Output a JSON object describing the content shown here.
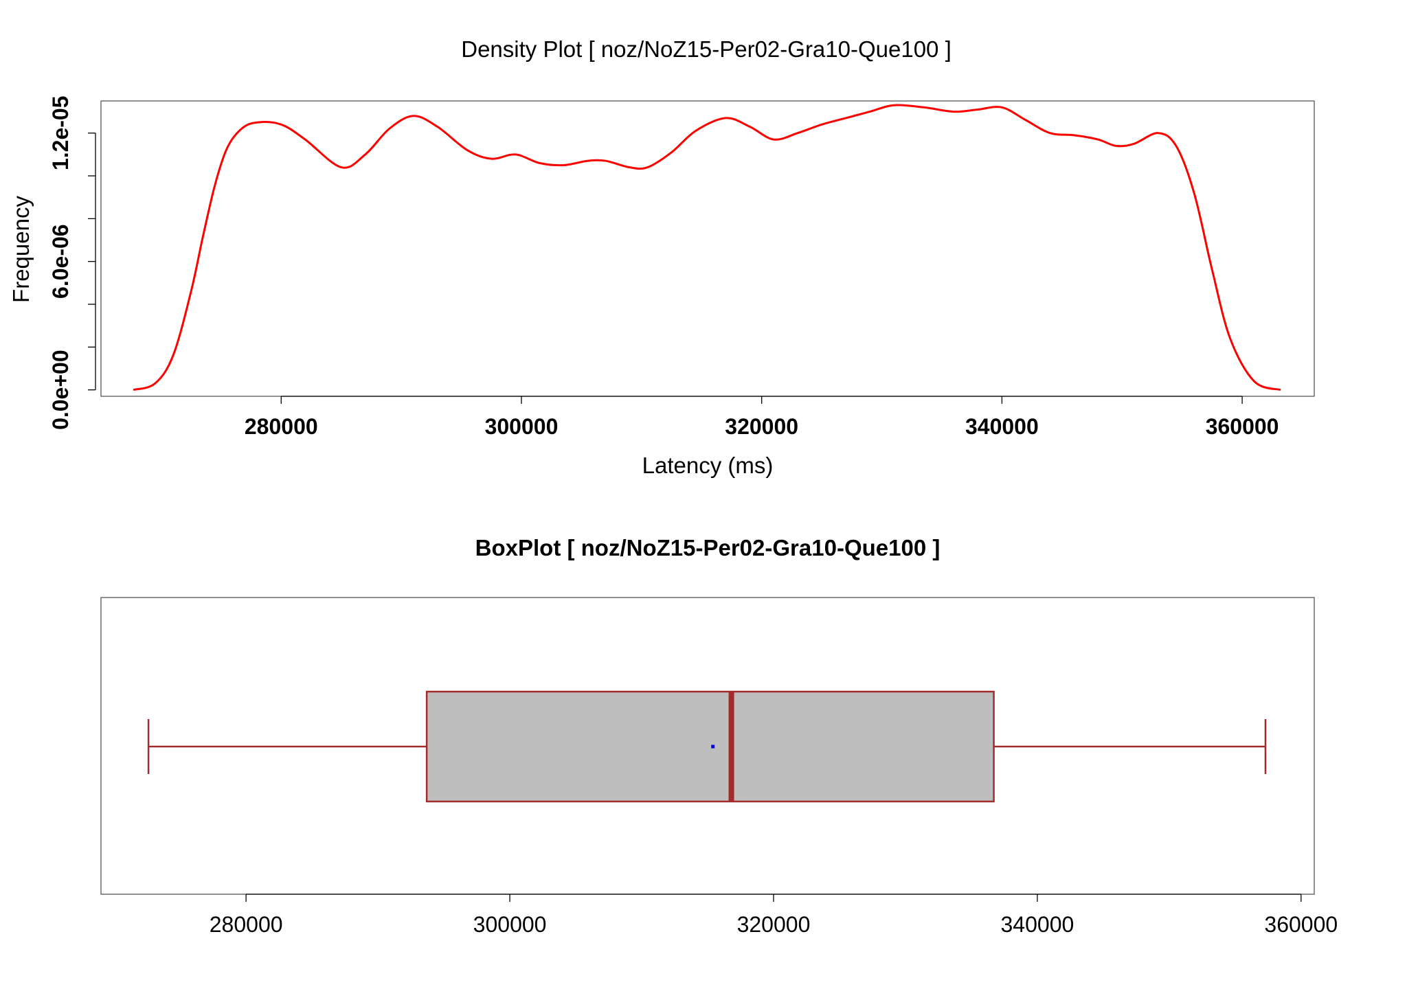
{
  "chart_data": [
    {
      "type": "line",
      "title": "Density Plot [ noz/NoZ15-Per02-Gra10-Que100 ]",
      "xlabel": "Latency (ms)",
      "ylabel": "Frequency",
      "xlim": [
        265000,
        366000
      ],
      "ylim": [
        -3e-07,
        1.35e-05
      ],
      "x_ticks": [
        280000,
        300000,
        320000,
        340000,
        360000
      ],
      "x_tick_labels": [
        "280000",
        "300000",
        "320000",
        "340000",
        "360000"
      ],
      "y_ticks": [
        0,
        2e-06,
        4e-06,
        6e-06,
        8e-06,
        1e-05,
        1.2e-05
      ],
      "y_tick_labels": [
        "0.0e+00",
        "6.0e-06",
        "1.2e-05"
      ],
      "y_labeled_ticks": [
        0,
        6e-06,
        1.2e-05
      ],
      "line_color": "#ff0000",
      "series": [
        {
          "x": [
            267700,
            269500,
            271000,
            272500,
            273500,
            274500,
            275500,
            276700,
            278000,
            280000,
            282000,
            285000,
            287000,
            289000,
            291000,
            293000,
            295500,
            297500,
            299500,
            301500,
            303500,
            305500,
            307000,
            309000,
            310500,
            312500,
            314500,
            317000,
            319000,
            321000,
            323000,
            325000,
            327000,
            329000,
            331000,
            333500,
            336000,
            338000,
            340000,
            342000,
            344000,
            346000,
            348000,
            349500,
            351000,
            353000,
            354500,
            356000,
            357500,
            359000,
            361000,
            363200
          ],
          "y": [
            0.0,
            3e-07,
            1.6e-06,
            4.6e-06,
            7.2e-06,
            9.6e-06,
            1.13e-05,
            1.22e-05,
            1.25e-05,
            1.24e-05,
            1.17e-05,
            1.04e-05,
            1.1e-05,
            1.22e-05,
            1.28e-05,
            1.23e-05,
            1.12e-05,
            1.08e-05,
            1.1e-05,
            1.06e-05,
            1.05e-05,
            1.07e-05,
            1.07e-05,
            1.04e-05,
            1.04e-05,
            1.11e-05,
            1.21e-05,
            1.27e-05,
            1.23e-05,
            1.17e-05,
            1.2e-05,
            1.24e-05,
            1.27e-05,
            1.3e-05,
            1.33e-05,
            1.32e-05,
            1.3e-05,
            1.31e-05,
            1.32e-05,
            1.26e-05,
            1.2e-05,
            1.19e-05,
            1.17e-05,
            1.14e-05,
            1.15e-05,
            1.2e-05,
            1.14e-05,
            9.2e-06,
            5.6e-06,
            2.4e-06,
            4e-07,
            0.0
          ]
        }
      ],
      "grid": false
    },
    {
      "type": "box",
      "title": "BoxPlot [ noz/NoZ15-Per02-Gra10-Que100 ]",
      "xlim": [
        269000,
        361000
      ],
      "x_ticks": [
        280000,
        300000,
        320000,
        340000,
        360000
      ],
      "x_tick_labels": [
        "280000",
        "300000",
        "320000",
        "340000",
        "360000"
      ],
      "whisker_low": 272600,
      "q1": 293700,
      "median": 316800,
      "q3": 336700,
      "whisker_high": 357300,
      "mean": 315400,
      "box_fill": "#bebebe",
      "box_stroke": "#a52a2a",
      "mean_color": "#0000ff",
      "grid": false
    }
  ]
}
